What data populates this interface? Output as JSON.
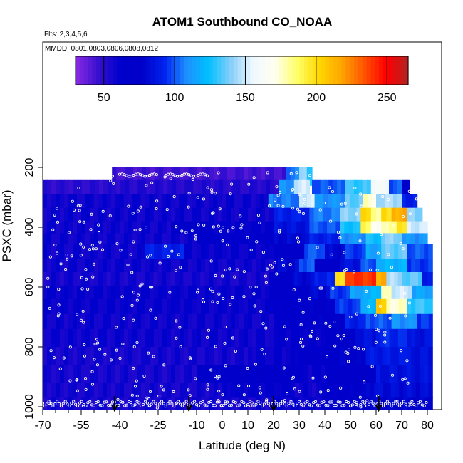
{
  "chart_data": {
    "type": "heatmap",
    "title": "ATOM1 Southbound CO_NOAA",
    "subtitle_flights": "Flts: 2,3,4,5,6",
    "subtitle_dates": "MMDD: 0801,0803,0806,0808,0812",
    "xlabel": "Latitude (deg N)",
    "ylabel": "PSXC (mbar)",
    "xlim": [
      -70,
      82
    ],
    "ylim": [
      1010,
      0
    ],
    "x_ticks": [
      "-70",
      "-55",
      "-40",
      "-25",
      "-10",
      "0",
      "10",
      "20",
      "30",
      "40",
      "50",
      "60",
      "70",
      "80"
    ],
    "y_ticks": [
      "200",
      "400",
      "600",
      "800",
      "1000"
    ],
    "colorbar": {
      "range": [
        30,
        265
      ],
      "ticks": [
        "50",
        "100",
        "150",
        "200",
        "250"
      ],
      "colors": [
        "#8a2be2",
        "#3a10d0",
        "#0000cd",
        "#0000c8",
        "#0022ee",
        "#1e90ff",
        "#00bfff",
        "#87cefa",
        "#f0f8ff",
        "#fffff0",
        "#ffff66",
        "#ffd700",
        "#ffa500",
        "#ff5500",
        "#ff0000",
        "#b22222"
      ]
    },
    "arrows_latitude": [
      -42,
      -13,
      20,
      61
    ],
    "rows": [
      {
        "p": [
          200,
          260
        ],
        "segs": [
          [
            -43,
            25,
            45
          ],
          [
            25,
            30,
            105
          ],
          [
            30,
            33,
            140
          ],
          [
            33,
            35,
            130
          ]
        ]
      },
      {
        "p": [
          240,
          290
        ],
        "segs": [
          [
            -70,
            -43,
            50
          ],
          [
            -43,
            22,
            52
          ],
          [
            22,
            28,
            110
          ],
          [
            28,
            34,
            150
          ],
          [
            35,
            48,
            100
          ],
          [
            48,
            58,
            130
          ],
          [
            58,
            65,
            160
          ],
          [
            65,
            70,
            100
          ],
          [
            70,
            73,
            60
          ]
        ]
      },
      {
        "p": [
          290,
          335
        ],
        "segs": [
          [
            -70,
            18,
            58
          ],
          [
            18,
            30,
            105
          ],
          [
            30,
            36,
            150
          ],
          [
            36,
            48,
            110
          ],
          [
            48,
            55,
            135
          ],
          [
            55,
            60,
            175
          ],
          [
            60,
            70,
            145
          ],
          [
            70,
            76,
            90
          ]
        ]
      },
      {
        "p": [
          335,
          380
        ],
        "segs": [
          [
            -70,
            20,
            58
          ],
          [
            20,
            34,
            90
          ],
          [
            34,
            46,
            105
          ],
          [
            46,
            54,
            140
          ],
          [
            54,
            58,
            200
          ],
          [
            58,
            62,
            180
          ],
          [
            62,
            66,
            200
          ],
          [
            66,
            72,
            215
          ],
          [
            72,
            78,
            140
          ]
        ]
      },
      {
        "p": [
          380,
          420
        ],
        "segs": [
          [
            -70,
            -20,
            58
          ],
          [
            -20,
            -5,
            72
          ],
          [
            -5,
            20,
            62
          ],
          [
            20,
            34,
            85
          ],
          [
            34,
            46,
            100
          ],
          [
            46,
            54,
            125
          ],
          [
            54,
            58,
            190
          ],
          [
            58,
            62,
            170
          ],
          [
            62,
            68,
            180
          ],
          [
            68,
            72,
            195
          ],
          [
            72,
            80,
            150
          ]
        ]
      },
      {
        "p": [
          420,
          455
        ],
        "segs": [
          [
            -70,
            -10,
            58
          ],
          [
            -10,
            20,
            65
          ],
          [
            20,
            34,
            80
          ],
          [
            34,
            46,
            90
          ],
          [
            46,
            56,
            110
          ],
          [
            56,
            62,
            125
          ],
          [
            62,
            70,
            140
          ],
          [
            70,
            80,
            110
          ]
        ]
      },
      {
        "p": [
          455,
          505
        ],
        "segs": [
          [
            -70,
            -30,
            58
          ],
          [
            -30,
            -15,
            90
          ],
          [
            -15,
            20,
            60
          ],
          [
            20,
            32,
            70
          ],
          [
            32,
            40,
            100
          ],
          [
            40,
            48,
            80
          ],
          [
            48,
            56,
            95
          ],
          [
            56,
            62,
            115
          ],
          [
            62,
            72,
            135
          ],
          [
            72,
            82,
            100
          ]
        ]
      },
      {
        "p": [
          505,
          550
        ],
        "segs": [
          [
            -70,
            20,
            58
          ],
          [
            20,
            30,
            80
          ],
          [
            30,
            36,
            100
          ],
          [
            36,
            46,
            70
          ],
          [
            46,
            54,
            85
          ],
          [
            54,
            60,
            100
          ],
          [
            60,
            72,
            120
          ],
          [
            72,
            82,
            95
          ]
        ]
      },
      {
        "p": [
          550,
          595
        ],
        "segs": [
          [
            -70,
            18,
            56
          ],
          [
            18,
            28,
            72
          ],
          [
            28,
            36,
            80
          ],
          [
            36,
            44,
            90
          ],
          [
            44,
            48,
            200
          ],
          [
            48,
            60,
            240
          ],
          [
            60,
            64,
            215
          ],
          [
            64,
            70,
            145
          ],
          [
            70,
            78,
            135
          ],
          [
            78,
            82,
            90
          ]
        ]
      },
      {
        "p": [
          595,
          640
        ],
        "segs": [
          [
            -70,
            20,
            60
          ],
          [
            20,
            34,
            70
          ],
          [
            34,
            42,
            80
          ],
          [
            42,
            50,
            95
          ],
          [
            50,
            58,
            115
          ],
          [
            58,
            62,
            125
          ],
          [
            62,
            66,
            180
          ],
          [
            66,
            74,
            150
          ],
          [
            74,
            82,
            115
          ]
        ]
      },
      {
        "p": [
          640,
          690
        ],
        "segs": [
          [
            -70,
            20,
            60
          ],
          [
            20,
            34,
            65
          ],
          [
            34,
            44,
            75
          ],
          [
            44,
            54,
            95
          ],
          [
            54,
            60,
            120
          ],
          [
            60,
            64,
            205
          ],
          [
            64,
            72,
            175
          ],
          [
            72,
            82,
            130
          ]
        ]
      },
      {
        "p": [
          690,
          740
        ],
        "segs": [
          [
            -70,
            20,
            58
          ],
          [
            20,
            36,
            65
          ],
          [
            36,
            48,
            75
          ],
          [
            48,
            56,
            90
          ],
          [
            56,
            66,
            100
          ],
          [
            66,
            76,
            110
          ],
          [
            76,
            82,
            95
          ]
        ]
      },
      {
        "p": [
          740,
          800
        ],
        "segs": [
          [
            -70,
            20,
            58
          ],
          [
            20,
            40,
            62
          ],
          [
            40,
            52,
            72
          ],
          [
            52,
            60,
            85
          ],
          [
            60,
            72,
            92
          ],
          [
            72,
            82,
            85
          ]
        ]
      },
      {
        "p": [
          800,
          860
        ],
        "segs": [
          [
            -70,
            10,
            56
          ],
          [
            10,
            30,
            60
          ],
          [
            30,
            46,
            66
          ],
          [
            46,
            56,
            76
          ],
          [
            56,
            72,
            88
          ],
          [
            72,
            82,
            85
          ]
        ]
      },
      {
        "p": [
          860,
          920
        ],
        "segs": [
          [
            -70,
            -10,
            56
          ],
          [
            -10,
            30,
            70
          ],
          [
            30,
            40,
            60
          ],
          [
            40,
            50,
            66
          ],
          [
            50,
            60,
            72
          ],
          [
            60,
            82,
            85
          ]
        ]
      },
      {
        "p": [
          920,
          970
        ],
        "segs": [
          [
            -70,
            0,
            56
          ],
          [
            0,
            25,
            62
          ],
          [
            25,
            40,
            58
          ],
          [
            40,
            56,
            64
          ],
          [
            56,
            82,
            82
          ]
        ]
      },
      {
        "p": [
          970,
          1010
        ],
        "segs": [
          [
            -70,
            20,
            56
          ],
          [
            20,
            40,
            60
          ],
          [
            40,
            56,
            64
          ],
          [
            56,
            82,
            78
          ]
        ]
      }
    ],
    "flight_track_points": 420
  }
}
